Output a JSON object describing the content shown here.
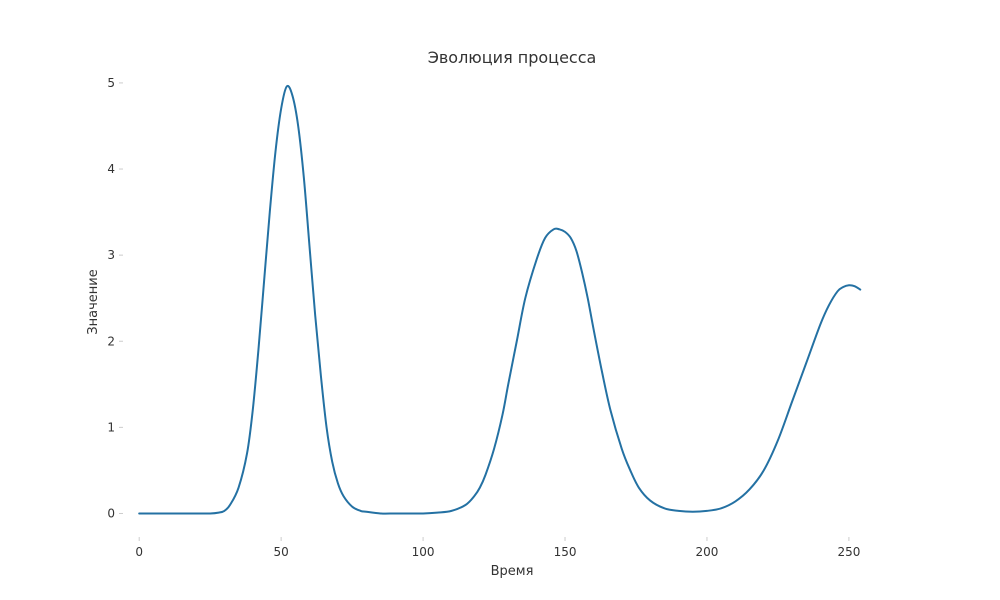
{
  "chart_data": {
    "type": "line",
    "title": "Эволюция процесса",
    "xlabel": "Время",
    "ylabel": "Значение",
    "xlim": [
      -5,
      268
    ],
    "ylim": [
      -0.25,
      5.15
    ],
    "x_ticks": [
      0,
      50,
      100,
      150,
      200,
      250
    ],
    "y_ticks": [
      0,
      1,
      2,
      3,
      4,
      5
    ],
    "grid": false,
    "legend": "none",
    "series": [
      {
        "color": "#2471a3",
        "x": [
          0,
          10,
          20,
          25,
          28,
          30,
          32,
          35,
          38,
          40,
          42,
          44,
          46,
          48,
          50,
          52,
          54,
          56,
          58,
          60,
          62,
          64,
          66,
          68,
          70,
          72,
          75,
          78,
          80,
          85,
          90,
          95,
          100,
          105,
          110,
          115,
          118,
          120,
          122,
          125,
          128,
          130,
          133,
          136,
          140,
          143,
          146,
          148,
          150,
          152,
          154,
          156,
          158,
          160,
          163,
          166,
          170,
          173,
          176,
          180,
          185,
          190,
          195,
          200,
          205,
          210,
          215,
          220,
          225,
          230,
          235,
          240,
          243,
          246,
          248,
          250,
          252,
          254
        ],
        "y": [
          0.0,
          0.0,
          0.0,
          0.0,
          0.01,
          0.03,
          0.1,
          0.3,
          0.7,
          1.2,
          1.9,
          2.7,
          3.5,
          4.2,
          4.7,
          4.96,
          4.85,
          4.5,
          3.9,
          3.1,
          2.3,
          1.6,
          1.0,
          0.6,
          0.35,
          0.2,
          0.08,
          0.03,
          0.02,
          0.0,
          0.0,
          0.0,
          0.0,
          0.01,
          0.03,
          0.1,
          0.2,
          0.3,
          0.45,
          0.75,
          1.15,
          1.5,
          2.0,
          2.5,
          2.95,
          3.2,
          3.3,
          3.3,
          3.27,
          3.2,
          3.05,
          2.8,
          2.5,
          2.15,
          1.65,
          1.2,
          0.75,
          0.5,
          0.3,
          0.15,
          0.06,
          0.03,
          0.02,
          0.03,
          0.06,
          0.14,
          0.28,
          0.5,
          0.85,
          1.3,
          1.75,
          2.2,
          2.42,
          2.58,
          2.63,
          2.65,
          2.64,
          2.6
        ]
      }
    ]
  }
}
